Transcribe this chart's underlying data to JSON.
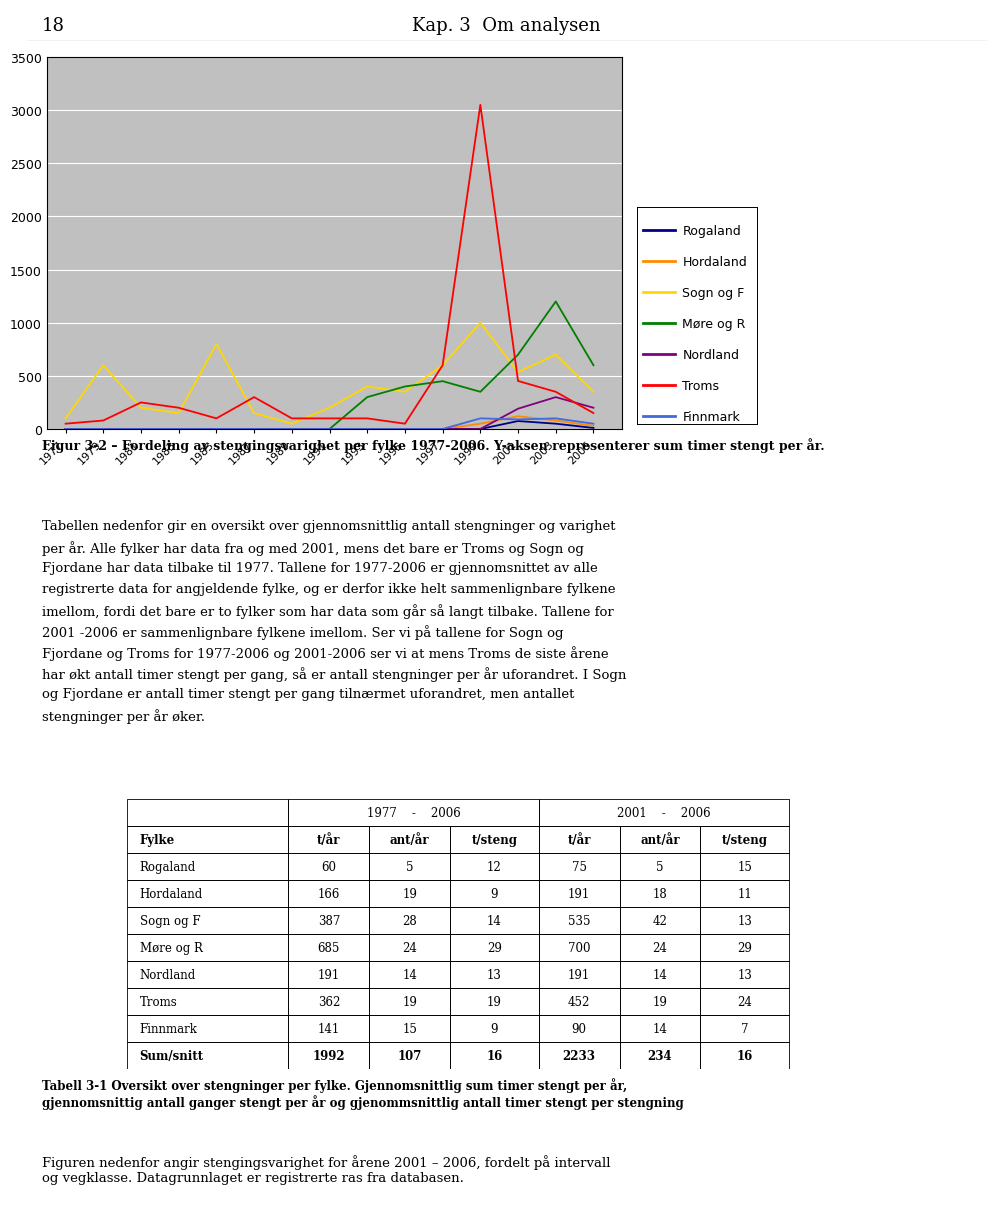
{
  "years": [
    1977,
    1979,
    1981,
    1983,
    1985,
    1987,
    1989,
    1991,
    1993,
    1995,
    1997,
    1999,
    2001,
    2003,
    2005
  ],
  "rogaland": [
    0,
    0,
    0,
    0,
    0,
    0,
    0,
    0,
    0,
    0,
    0,
    0,
    75,
    50,
    10
  ],
  "hordaland": [
    0,
    0,
    0,
    0,
    0,
    0,
    0,
    0,
    0,
    0,
    0,
    50,
    120,
    80,
    30
  ],
  "sognog_f": [
    100,
    600,
    200,
    150,
    800,
    150,
    50,
    200,
    400,
    350,
    600,
    1000,
    535,
    700,
    350
  ],
  "more_og_r": [
    0,
    0,
    0,
    0,
    0,
    0,
    0,
    0,
    300,
    400,
    450,
    350,
    700,
    1200,
    600
  ],
  "nordland": [
    0,
    0,
    0,
    0,
    0,
    0,
    0,
    0,
    0,
    0,
    0,
    0,
    191,
    300,
    200
  ],
  "troms": [
    50,
    80,
    250,
    200,
    100,
    300,
    100,
    100,
    100,
    50,
    600,
    3050,
    452,
    350,
    150
  ],
  "finnmark": [
    0,
    0,
    0,
    0,
    0,
    0,
    0,
    0,
    0,
    0,
    0,
    100,
    90,
    100,
    50
  ],
  "line_colors": {
    "rogaland": "#00008B",
    "hordaland": "#FF8C00",
    "sognog_f": "#FFD700",
    "more_og_r": "#008000",
    "nordland": "#800080",
    "troms": "#FF0000",
    "finnmark": "#4169E1"
  },
  "legend_labels": [
    "Rogaland",
    "Hordaland",
    "Sogn og F",
    "Møre og R",
    "Nordland",
    "Troms",
    "Finnmark"
  ],
  "ylim": [
    0,
    3500
  ],
  "yticks": [
    0,
    500,
    1000,
    1500,
    2000,
    2500,
    3000,
    3500
  ],
  "chart_bg": "#C0C0C0",
  "title_page": "18",
  "title_header": "Kap. 3  Om analysen",
  "fig_caption_bold": "Figur 3-2 – Fordeling av stengingsvarighet per fylke 1977-2006. Y-aksen representerer sum timer stengt per år.",
  "para1_lines": [
    "Tabellen nedenfor gir en oversikt over gjennomsnittlig antall stengninger og varighet",
    "per år. Alle fylker har data fra og med 2001, mens det bare er Troms og Sogn og",
    "Fjordane har data tilbake til 1977. Tallene for 1977-2006 er gjennomsnittet av alle",
    "registrerte data for angjeldende fylke, og er derfor ikke helt sammenlignbare fylkene",
    "imellom, fordi det bare er to fylker som har data som går så langt tilbake. Tallene for",
    "2001 -2006 er sammenlignbare fylkene imellom. Ser vi på tallene for Sogn og",
    "Fjordane og Troms for 1977-2006 og 2001-2006 ser vi at mens Troms de siste årene",
    "har økt antall timer stengt per gang, så er antall stengninger per år uforandret. I Sogn",
    "og Fjordane er antall timer stengt per gang tilnærmet uforandret, men antallet",
    "stengninger per år øker."
  ],
  "table_header2": [
    "Fylke",
    "t/år",
    "ant/år",
    "t/steng",
    "t/år",
    "ant/år",
    "t/steng"
  ],
  "table_rows": [
    [
      "Rogaland",
      "60",
      "5",
      "12",
      "75",
      "5",
      "15"
    ],
    [
      "Hordaland",
      "166",
      "19",
      "9",
      "191",
      "18",
      "11"
    ],
    [
      "Sogn og F",
      "387",
      "28",
      "14",
      "535",
      "42",
      "13"
    ],
    [
      "Møre og R",
      "685",
      "24",
      "29",
      "700",
      "24",
      "29"
    ],
    [
      "Nordland",
      "191",
      "14",
      "13",
      "191",
      "14",
      "13"
    ],
    [
      "Troms",
      "362",
      "19",
      "19",
      "452",
      "19",
      "24"
    ],
    [
      "Finnmark",
      "141",
      "15",
      "9",
      "90",
      "14",
      "7"
    ]
  ],
  "table_footer": [
    "Sum/snitt",
    "1992",
    "107",
    "16",
    "2233",
    "234",
    "16"
  ],
  "table_caption_lines": [
    "Tabell 3-1 Oversikt over stengninger per fylke. Gjennomsnittlig sum timer stengt per år,",
    "gjennomsnittig antall ganger stengt per år og gjenommsnittlig antall timer stengt per stengning"
  ],
  "para2_lines": [
    "Figuren nedenfor angir stengingsvarighet for årene 2001 – 2006, fordelt på intervall",
    "og vegklasse. Datagrunnlaget er registrerte ras fra databasen."
  ]
}
